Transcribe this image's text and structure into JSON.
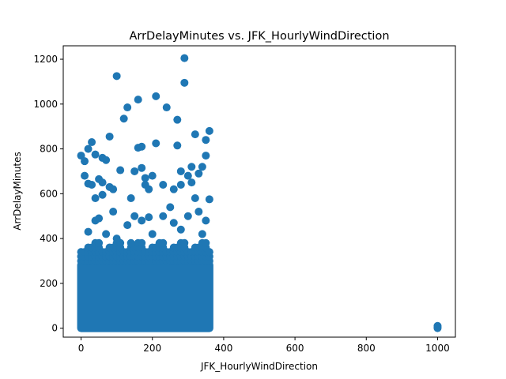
{
  "chart_data": {
    "type": "scatter",
    "title": "ArrDelayMinutes vs. JFK_HourlyWindDirection",
    "xlabel": "JFK_HourlyWindDirection",
    "ylabel": "ArrDelayMinutes",
    "xlim": [
      -50,
      1050
    ],
    "ylim": [
      -40,
      1260
    ],
    "xticks": [
      0,
      200,
      400,
      600,
      800,
      1000
    ],
    "yticks": [
      0,
      200,
      400,
      600,
      800,
      1000,
      1200
    ],
    "grid": false,
    "marker_color": "#1f77b4",
    "dense_region": {
      "x_range": [
        0,
        360
      ],
      "y_range": [
        0,
        300
      ]
    },
    "points": [
      {
        "x": 0,
        "y": 770
      },
      {
        "x": 10,
        "y": 745
      },
      {
        "x": 10,
        "y": 680
      },
      {
        "x": 20,
        "y": 800
      },
      {
        "x": 30,
        "y": 830
      },
      {
        "x": 40,
        "y": 775
      },
      {
        "x": 20,
        "y": 645
      },
      {
        "x": 30,
        "y": 640
      },
      {
        "x": 40,
        "y": 580
      },
      {
        "x": 50,
        "y": 665
      },
      {
        "x": 60,
        "y": 650
      },
      {
        "x": 60,
        "y": 595
      },
      {
        "x": 60,
        "y": 760
      },
      {
        "x": 70,
        "y": 750
      },
      {
        "x": 80,
        "y": 855
      },
      {
        "x": 80,
        "y": 630
      },
      {
        "x": 90,
        "y": 620
      },
      {
        "x": 90,
        "y": 520
      },
      {
        "x": 100,
        "y": 1125
      },
      {
        "x": 110,
        "y": 705
      },
      {
        "x": 120,
        "y": 935
      },
      {
        "x": 130,
        "y": 985
      },
      {
        "x": 140,
        "y": 580
      },
      {
        "x": 150,
        "y": 700
      },
      {
        "x": 160,
        "y": 1020
      },
      {
        "x": 160,
        "y": 805
      },
      {
        "x": 170,
        "y": 810
      },
      {
        "x": 170,
        "y": 715
      },
      {
        "x": 180,
        "y": 670
      },
      {
        "x": 180,
        "y": 640
      },
      {
        "x": 190,
        "y": 620
      },
      {
        "x": 200,
        "y": 680
      },
      {
        "x": 210,
        "y": 1035
      },
      {
        "x": 210,
        "y": 825
      },
      {
        "x": 230,
        "y": 640
      },
      {
        "x": 240,
        "y": 985
      },
      {
        "x": 250,
        "y": 540
      },
      {
        "x": 260,
        "y": 620
      },
      {
        "x": 270,
        "y": 930
      },
      {
        "x": 270,
        "y": 815
      },
      {
        "x": 280,
        "y": 700
      },
      {
        "x": 280,
        "y": 640
      },
      {
        "x": 290,
        "y": 1205
      },
      {
        "x": 290,
        "y": 1095
      },
      {
        "x": 300,
        "y": 680
      },
      {
        "x": 310,
        "y": 720
      },
      {
        "x": 310,
        "y": 650
      },
      {
        "x": 320,
        "y": 865
      },
      {
        "x": 320,
        "y": 580
      },
      {
        "x": 330,
        "y": 690
      },
      {
        "x": 340,
        "y": 720
      },
      {
        "x": 350,
        "y": 840
      },
      {
        "x": 350,
        "y": 770
      },
      {
        "x": 360,
        "y": 880
      },
      {
        "x": 360,
        "y": 575
      },
      {
        "x": 40,
        "y": 480
      },
      {
        "x": 50,
        "y": 490
      },
      {
        "x": 130,
        "y": 460
      },
      {
        "x": 150,
        "y": 500
      },
      {
        "x": 170,
        "y": 480
      },
      {
        "x": 190,
        "y": 495
      },
      {
        "x": 230,
        "y": 500
      },
      {
        "x": 260,
        "y": 470
      },
      {
        "x": 300,
        "y": 500
      },
      {
        "x": 330,
        "y": 520
      },
      {
        "x": 350,
        "y": 480
      },
      {
        "x": 20,
        "y": 430
      },
      {
        "x": 70,
        "y": 420
      },
      {
        "x": 100,
        "y": 400
      },
      {
        "x": 140,
        "y": 380
      },
      {
        "x": 200,
        "y": 420
      },
      {
        "x": 280,
        "y": 440
      },
      {
        "x": 340,
        "y": 420
      },
      {
        "x": 1000,
        "y": 10
      },
      {
        "x": 1000,
        "y": 5
      },
      {
        "x": 1000,
        "y": 0
      }
    ]
  }
}
